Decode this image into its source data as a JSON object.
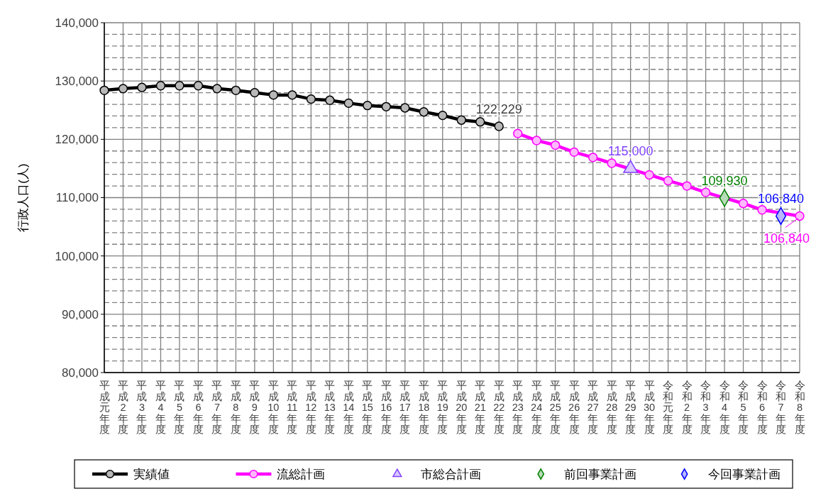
{
  "chart_data": {
    "type": "line",
    "ylabel": "行政人口(人)",
    "categories": [
      "平成元年度",
      "平成2年度",
      "平成3年度",
      "平成4年度",
      "平成5年度",
      "平成6年度",
      "平成7年度",
      "平成8年度",
      "平成9年度",
      "平成10年度",
      "平成11年度",
      "平成12年度",
      "平成13年度",
      "平成14年度",
      "平成15年度",
      "平成16年度",
      "平成17年度",
      "平成18年度",
      "平成19年度",
      "平成20年度",
      "平成21年度",
      "平成22年度",
      "平成23年度",
      "平成24年度",
      "平成25年度",
      "平成26年度",
      "平成27年度",
      "平成28年度",
      "平成29年度",
      "平成30年度",
      "令和元年度",
      "令和2年度",
      "令和3年度",
      "令和4年度",
      "令和5年度",
      "令和6年度",
      "令和7年度",
      "令和8年度"
    ],
    "series": [
      {
        "name": "実績値",
        "color": "#000000",
        "marker": "circle",
        "values": [
          128400,
          128700,
          128900,
          129200,
          129200,
          129200,
          128700,
          128400,
          128000,
          127600,
          127600,
          126900,
          126700,
          126200,
          125800,
          125600,
          125400,
          124700,
          124100,
          123300,
          123000,
          122229,
          null,
          null,
          null,
          null,
          null,
          null,
          null,
          null,
          null,
          null,
          null,
          null,
          null,
          null,
          null,
          null
        ]
      },
      {
        "name": "流総計画",
        "color": "#ff00ff",
        "marker": "circle",
        "values": [
          null,
          null,
          null,
          null,
          null,
          null,
          null,
          null,
          null,
          null,
          null,
          null,
          null,
          null,
          null,
          null,
          null,
          null,
          null,
          null,
          null,
          null,
          121000,
          119800,
          119000,
          117800,
          116900,
          115900,
          null,
          113900,
          112900,
          112000,
          110900,
          null,
          109000,
          107900,
          null,
          106840
        ]
      },
      {
        "name": "市総合計画",
        "type": "scatter",
        "color": "#7f3fff",
        "marker": "triangle",
        "x": [
          "平成29年度"
        ],
        "values": [
          115000
        ]
      },
      {
        "name": "前回事業計画",
        "type": "scatter",
        "color": "#008000",
        "marker": "diamond",
        "x": [
          "令和4年度"
        ],
        "values": [
          109930
        ]
      },
      {
        "name": "今回事業計画",
        "type": "scatter",
        "color": "#0000ff",
        "marker": "diamond",
        "x": [
          "令和7年度"
        ],
        "values": [
          106840
        ]
      }
    ],
    "annotations": [
      {
        "text": "122,229",
        "x": "平成22年度",
        "y": 122229
      },
      {
        "text": "115,000",
        "x": "平成29年度",
        "y": 115000
      },
      {
        "text": "109,930",
        "x": "令和4年度",
        "y": 109930
      },
      {
        "text": "106,840",
        "x": "令和7年度",
        "y": 106840
      },
      {
        "text": "106,840",
        "x": "令和8年度",
        "y": 106840
      }
    ],
    "ylim": [
      80000,
      140000
    ],
    "yticks": [
      {
        "value": 80000,
        "label": "80,000"
      },
      {
        "value": 82000,
        "label": null
      },
      {
        "value": 84000,
        "label": null
      },
      {
        "value": 86000,
        "label": null
      },
      {
        "value": 88000,
        "label": null
      },
      {
        "value": 90000,
        "label": "90,000"
      },
      {
        "value": 92000,
        "label": null
      },
      {
        "value": 94000,
        "label": null
      },
      {
        "value": 96000,
        "label": null
      },
      {
        "value": 98000,
        "label": null
      },
      {
        "value": 100000,
        "label": "100,000"
      },
      {
        "value": 102000,
        "label": null
      },
      {
        "value": 104000,
        "label": null
      },
      {
        "value": 106000,
        "label": null
      },
      {
        "value": 108000,
        "label": null
      },
      {
        "value": 110000,
        "label": "110,000"
      },
      {
        "value": 112000,
        "label": null
      },
      {
        "value": 114000,
        "label": null
      },
      {
        "value": 116000,
        "label": null
      },
      {
        "value": 118000,
        "label": null
      },
      {
        "value": 120000,
        "label": "120,000"
      },
      {
        "value": 122000,
        "label": null
      },
      {
        "value": 124000,
        "label": null
      },
      {
        "value": 126000,
        "label": null
      },
      {
        "value": 128000,
        "label": null
      },
      {
        "value": 130000,
        "label": "130,000"
      },
      {
        "value": 132000,
        "label": null
      },
      {
        "value": 134000,
        "label": null
      },
      {
        "value": 136000,
        "label": null
      },
      {
        "value": 138000,
        "label": null
      },
      {
        "value": 140000,
        "label": "140,000"
      }
    ],
    "grid": true,
    "legend": "bottom"
  }
}
